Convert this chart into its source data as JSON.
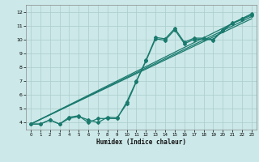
{
  "xlabel": "Humidex (Indice chaleur)",
  "bg_color": "#cce8e8",
  "line_color": "#1a7a6e",
  "grid_color": "#aacccc",
  "xlim": [
    -0.5,
    23.5
  ],
  "ylim": [
    3.5,
    12.5
  ],
  "xticks": [
    0,
    1,
    2,
    3,
    4,
    5,
    6,
    7,
    8,
    9,
    10,
    11,
    12,
    13,
    14,
    15,
    16,
    17,
    18,
    19,
    20,
    21,
    22,
    23
  ],
  "yticks": [
    4,
    5,
    6,
    7,
    8,
    9,
    10,
    11,
    12
  ],
  "series1_x": [
    0,
    1,
    2,
    3,
    4,
    5,
    6,
    7,
    8,
    9,
    10,
    11,
    12,
    13,
    14,
    15,
    16,
    17,
    18,
    19,
    20,
    21,
    22,
    23
  ],
  "series1_y": [
    3.9,
    3.9,
    4.2,
    3.9,
    4.4,
    4.5,
    4.0,
    4.3,
    4.3,
    4.3,
    5.5,
    7.0,
    8.5,
    10.15,
    10.05,
    10.8,
    9.8,
    10.1,
    10.1,
    10.0,
    10.7,
    11.2,
    11.5,
    11.85
  ],
  "series2_x": [
    0,
    1,
    2,
    3,
    4,
    5,
    6,
    7,
    8,
    9,
    10,
    11,
    12,
    13,
    14,
    15,
    16,
    17,
    18,
    19,
    20,
    21,
    22,
    23
  ],
  "series2_y": [
    3.9,
    3.9,
    4.2,
    3.9,
    4.3,
    4.45,
    4.2,
    4.0,
    4.4,
    4.35,
    5.35,
    6.95,
    8.45,
    10.05,
    9.95,
    10.7,
    9.7,
    10.0,
    10.05,
    9.95,
    10.65,
    11.15,
    11.45,
    11.75
  ],
  "line1_x": [
    0,
    23
  ],
  "line1_y": [
    3.9,
    11.85
  ],
  "line2_x": [
    0,
    23
  ],
  "line2_y": [
    3.9,
    11.65
  ],
  "line3_x": [
    0,
    23
  ],
  "line3_y": [
    3.9,
    11.5
  ]
}
